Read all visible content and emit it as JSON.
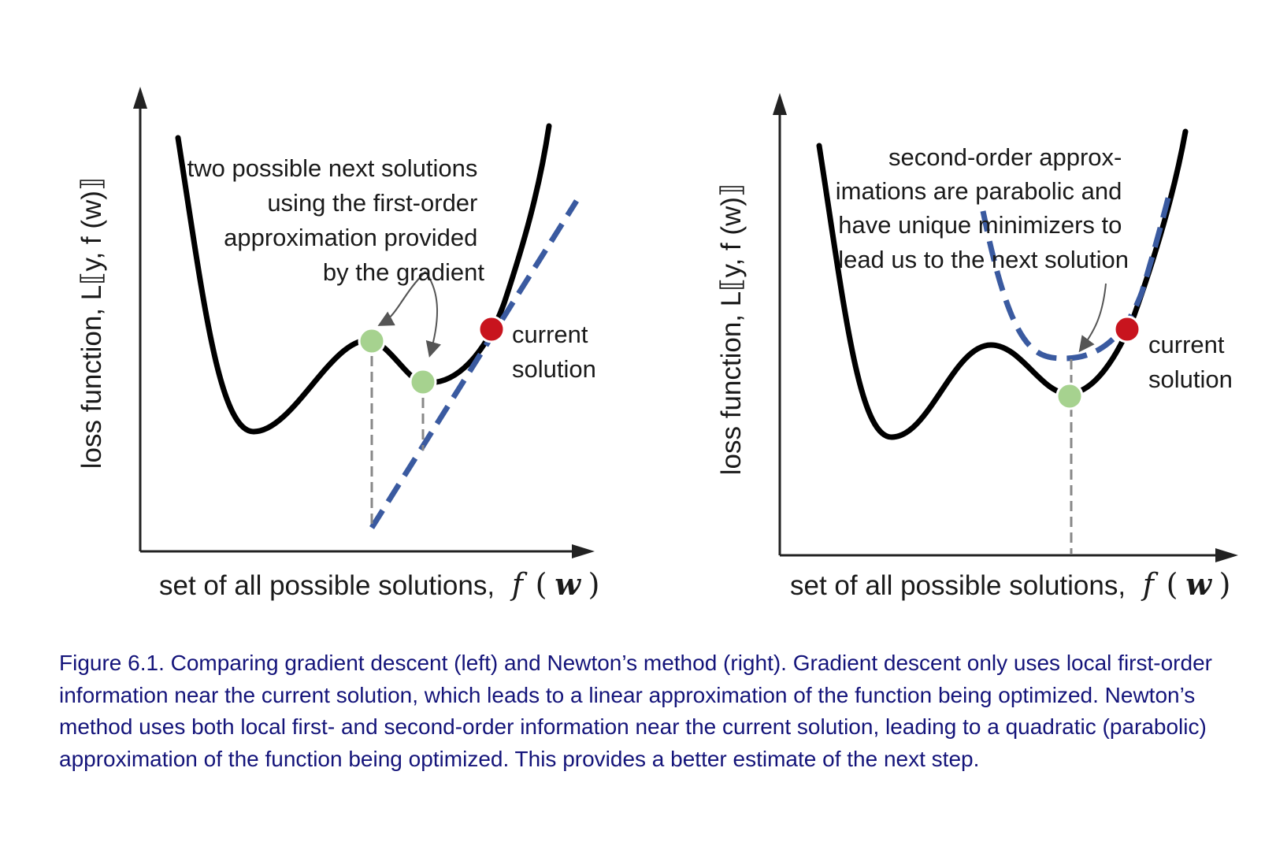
{
  "left_panel": {
    "y_axis_label": "loss function, L⟦y, f (w)⟧",
    "x_axis_label": "set of all possible solutions,",
    "annotation_lines": [
      "two possible next solutions",
      "using the first-order",
      "approximation provided",
      "by the gradient"
    ],
    "current_solution_lines": [
      "current",
      "solution"
    ]
  },
  "right_panel": {
    "y_axis_label": "loss function, L⟦y, f (w)⟧",
    "x_axis_label": "set of all possible solutions,",
    "annotation_lines": [
      "second-order approx-",
      "imations are parabolic and",
      "have unique minimizers to",
      "lead us to the next solution"
    ],
    "current_solution_lines": [
      "current",
      "solution"
    ]
  },
  "x_math": {
    "f": "f",
    "open": "(",
    "w": "w",
    "close": ")"
  },
  "colors": {
    "curve": "#000000",
    "approximation": "#3a5aa0",
    "current_point": "#c8141e",
    "candidate_point": "#a6d28f",
    "dropline": "#888888",
    "caption": "#14147a"
  },
  "caption": "Figure 6.1. Comparing gradient descent (left) and Newton’s method (right). Gradient descent only uses local first-order information near the current solution, which leads to a linear approximation of the function being optimized. Newton’s method uses both local first- and second-order information near the current solution, leading to a quadratic (parabolic) approximation of the function being optimized. This provides a better estimate of the next step."
}
